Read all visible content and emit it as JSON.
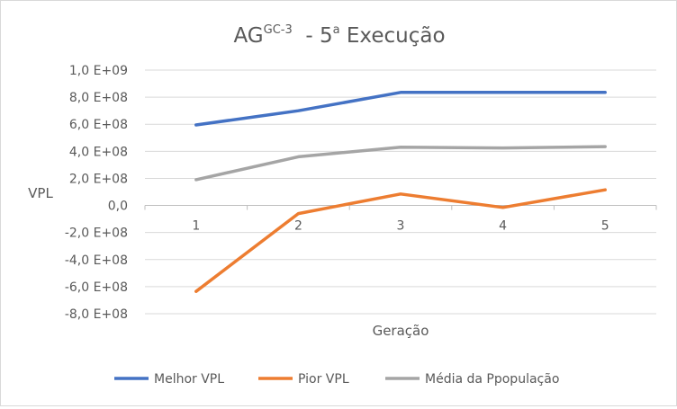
{
  "chart_data": {
    "type": "line",
    "title_main": "AG",
    "title_sup": "GC-3",
    "title_rest": "  - 5",
    "title_sup2": "a",
    "title_end": " Execução",
    "xlabel": "Geração",
    "ylabel": "VPL",
    "categories": [
      "1",
      "2",
      "3",
      "4",
      "5"
    ],
    "ylim": [
      -800000000,
      1000000000
    ],
    "yticks": [
      {
        "value": 1000000000,
        "label": "1,0 E+09"
      },
      {
        "value": 800000000,
        "label": "8,0 E+08"
      },
      {
        "value": 600000000,
        "label": "6,0 E+08"
      },
      {
        "value": 400000000,
        "label": "4,0 E+08"
      },
      {
        "value": 200000000,
        "label": "2,0 E+08"
      },
      {
        "value": 0,
        "label": "0,0"
      },
      {
        "value": -200000000,
        "label": "-2,0 E+08"
      },
      {
        "value": -400000000,
        "label": "-4,0 E+08"
      },
      {
        "value": -600000000,
        "label": "-6,0 E+08"
      },
      {
        "value": -800000000,
        "label": "-8,0 E+08"
      }
    ],
    "grid": true,
    "legend_position": "bottom",
    "series": [
      {
        "name": "Melhor VPL",
        "color": "#4472c4",
        "values": [
          595000000,
          700000000,
          835000000,
          835000000,
          835000000
        ]
      },
      {
        "name": "Pior VPL",
        "color": "#ed7d31",
        "values": [
          -635000000,
          -60000000,
          85000000,
          -15000000,
          115000000
        ]
      },
      {
        "name": "Média da Ppopulação",
        "color": "#a5a5a5",
        "values": [
          190000000,
          360000000,
          430000000,
          425000000,
          435000000
        ]
      }
    ]
  }
}
